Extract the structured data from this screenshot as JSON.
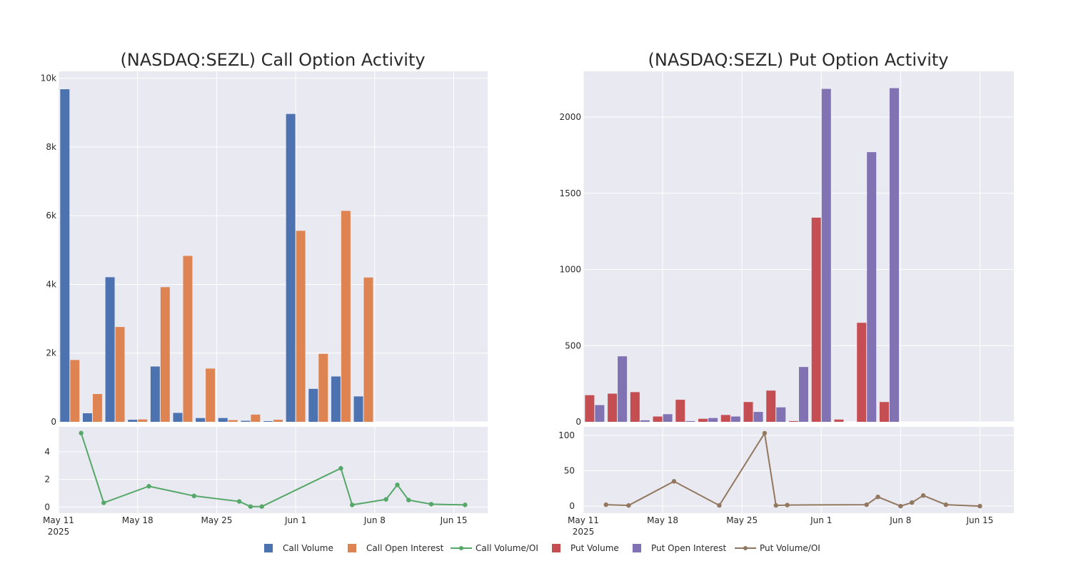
{
  "legend": [
    {
      "label": "Call Volume",
      "kind": "bar",
      "color": "#4c72b0"
    },
    {
      "label": "Call Open Interest",
      "kind": "bar",
      "color": "#dd8452"
    },
    {
      "label": "Call Volume/OI",
      "kind": "line",
      "color": "#55a868"
    },
    {
      "label": "Put Volume",
      "kind": "bar",
      "color": "#c44e52"
    },
    {
      "label": "Put Open Interest",
      "kind": "bar",
      "color": "#8172b3"
    },
    {
      "label": "Put Volume/OI",
      "kind": "line",
      "color": "#937860"
    }
  ],
  "chart_data": [
    {
      "type": "bar",
      "title": "(NASDAQ:SEZL) Call Option Activity",
      "categories": [
        "2025-05-12",
        "2025-05-14",
        "2025-05-16",
        "2025-05-18",
        "2025-05-20",
        "2025-05-22",
        "2025-05-24",
        "2025-05-26",
        "2025-05-28",
        "2025-05-30",
        "2025-06-01",
        "2025-06-03",
        "2025-06-05",
        "2025-06-07"
      ],
      "x_tick_labels": [
        "May 11",
        "May 18",
        "May 25",
        "Jun 1",
        "Jun 8",
        "Jun 15"
      ],
      "x_tick_year": "2025",
      "x_range": [
        "2025-05-11",
        "2025-06-18"
      ],
      "series": [
        {
          "name": "Call Volume",
          "color": "#4c72b0",
          "values": [
            9680,
            250,
            4210,
            60,
            1610,
            260,
            110,
            110,
            30,
            20,
            8960,
            960,
            1320,
            740
          ]
        },
        {
          "name": "Call Open Interest",
          "color": "#dd8452",
          "values": [
            1800,
            810,
            2760,
            70,
            3920,
            4830,
            1550,
            50,
            210,
            60,
            5560,
            1980,
            6140,
            4200
          ]
        }
      ],
      "y_ticks": [
        "0",
        "2k",
        "4k",
        "6k",
        "8k",
        "10k"
      ],
      "ylim": [
        0,
        10200
      ],
      "ratio": {
        "name": "Call Volume/OI",
        "color": "#55a868",
        "points": [
          [
            "2025-05-13",
            5.35
          ],
          [
            "2025-05-15",
            0.3
          ],
          [
            "2025-05-19",
            1.5
          ],
          [
            "2025-05-23",
            0.8
          ],
          [
            "2025-05-27",
            0.4
          ],
          [
            "2025-05-28",
            0.03
          ],
          [
            "2025-05-29",
            0.03
          ],
          [
            "2025-06-05",
            2.8
          ],
          [
            "2025-06-06",
            0.15
          ],
          [
            "2025-06-09",
            0.55
          ],
          [
            "2025-06-10",
            1.6
          ],
          [
            "2025-06-11",
            0.5
          ],
          [
            "2025-06-13",
            0.2
          ],
          [
            "2025-06-16",
            0.15
          ]
        ],
        "y_ticks": [
          "0",
          "2",
          "4"
        ],
        "ylim": [
          -0.45,
          5.8
        ]
      }
    },
    {
      "type": "bar",
      "title": "(NASDAQ:SEZL) Put Option Activity",
      "categories": [
        "2025-05-12",
        "2025-05-14",
        "2025-05-16",
        "2025-05-18",
        "2025-05-20",
        "2025-05-22",
        "2025-05-24",
        "2025-05-26",
        "2025-05-28",
        "2025-05-30",
        "2025-06-01",
        "2025-06-03",
        "2025-06-05",
        "2025-06-07"
      ],
      "x_tick_labels": [
        "May 11",
        "May 18",
        "May 25",
        "Jun 1",
        "Jun 8",
        "Jun 15"
      ],
      "x_tick_year": "2025",
      "x_range": [
        "2025-05-11",
        "2025-06-18"
      ],
      "series": [
        {
          "name": "Put Volume",
          "color": "#c44e52",
          "values": [
            175,
            185,
            195,
            35,
            145,
            20,
            45,
            130,
            205,
            5,
            1340,
            15,
            650,
            130
          ]
        },
        {
          "name": "Put Open Interest",
          "color": "#8172b3",
          "values": [
            110,
            430,
            10,
            50,
            5,
            25,
            35,
            65,
            95,
            360,
            2185,
            0,
            1770,
            2190
          ]
        }
      ],
      "y_ticks": [
        "0",
        "500",
        "1000",
        "1500",
        "2000"
      ],
      "ylim": [
        0,
        2300
      ],
      "ratio": {
        "name": "Put Volume/OI",
        "color": "#937860",
        "points": [
          [
            "2025-05-13",
            2
          ],
          [
            "2025-05-15",
            1
          ],
          [
            "2025-05-19",
            35
          ],
          [
            "2025-05-23",
            1
          ],
          [
            "2025-05-27",
            103
          ],
          [
            "2025-05-28",
            1
          ],
          [
            "2025-05-29",
            1.5
          ],
          [
            "2025-06-05",
            2
          ],
          [
            "2025-06-06",
            13
          ],
          [
            "2025-06-08",
            0
          ],
          [
            "2025-06-09",
            5
          ],
          [
            "2025-06-10",
            15
          ],
          [
            "2025-06-12",
            2
          ],
          [
            "2025-06-15",
            0
          ]
        ],
        "y_ticks": [
          "0",
          "50",
          "100"
        ],
        "ylim": [
          -10,
          112
        ]
      }
    }
  ]
}
